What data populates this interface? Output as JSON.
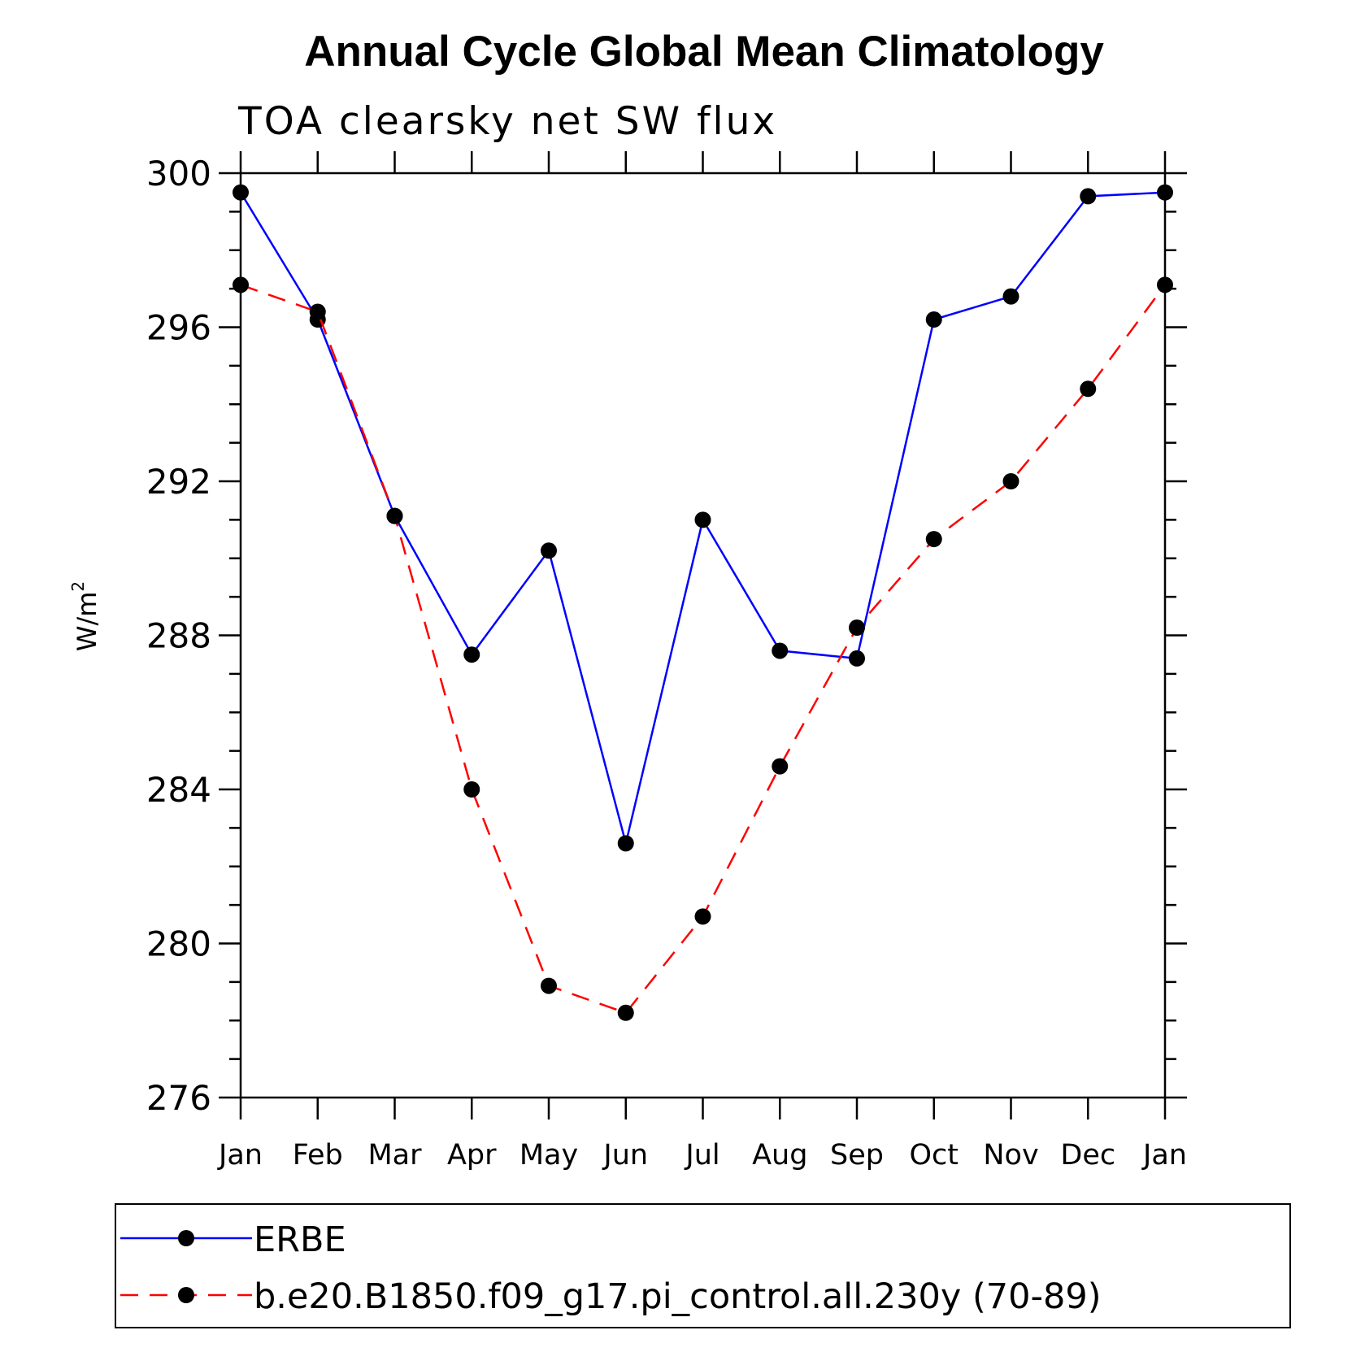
{
  "chart_data": {
    "type": "line",
    "title": "Annual Cycle Global Mean Climatology",
    "subtitle": "TOA clearsky net SW flux",
    "ylabel": "W/m",
    "ylabel_superscript": "2",
    "xlabel": "",
    "ylim": [
      276,
      300
    ],
    "y_ticks": [
      276,
      280,
      284,
      288,
      292,
      296,
      300
    ],
    "y_minor_step": 1,
    "grid": false,
    "legend_position": "bottom",
    "categories": [
      "Jan",
      "Feb",
      "Mar",
      "Apr",
      "May",
      "Jun",
      "Jul",
      "Aug",
      "Sep",
      "Oct",
      "Nov",
      "Dec",
      "Jan"
    ],
    "series": [
      {
        "name": "ERBE",
        "color": "#0000ff",
        "dash": "solid",
        "marker_color": "#000000",
        "values": [
          299.5,
          296.2,
          291.1,
          287.5,
          290.2,
          282.6,
          291.0,
          287.6,
          287.4,
          296.2,
          296.8,
          299.4,
          299.5
        ]
      },
      {
        "name": "b.e20.B1850.f09_g17.pi_control.all.230y (70-89)",
        "color": "#ff0000",
        "dash": "dashed",
        "marker_color": "#000000",
        "values": [
          297.1,
          296.4,
          291.1,
          284.0,
          278.9,
          278.2,
          280.7,
          284.6,
          288.2,
          290.5,
          292.0,
          294.4,
          297.1
        ]
      }
    ]
  }
}
